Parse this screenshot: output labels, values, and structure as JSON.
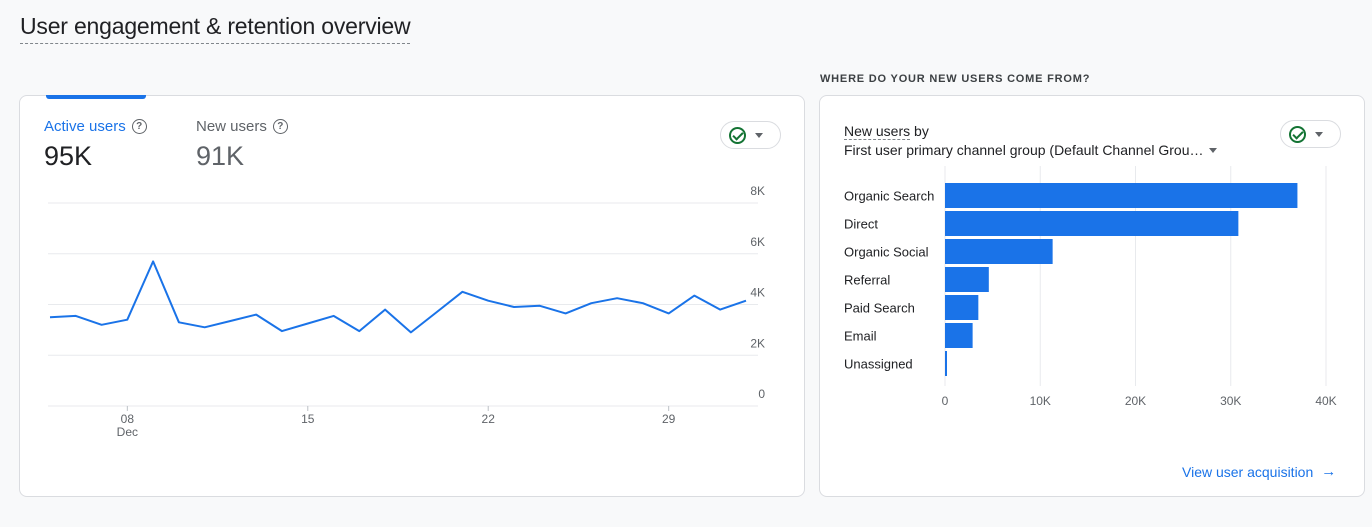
{
  "page": {
    "title": "User engagement & retention overview"
  },
  "left_card": {
    "metrics": [
      {
        "label": "Active users",
        "value": "95K",
        "help": "?"
      },
      {
        "label": "New users",
        "value": "91K",
        "help": "?"
      }
    ]
  },
  "right_section": {
    "heading": "WHERE DO YOUR NEW USERS COME FROM?",
    "metric_name": "New users",
    "by_word": " by",
    "dimension": "First user primary channel group (Default Channel Grou…",
    "link_label": "View user acquisition",
    "link_arrow": "→"
  },
  "colors": {
    "accent": "#1a73e8",
    "check": "#137333",
    "grid": "#e8eaed"
  },
  "icons": {
    "metric_help": "help-circle-icon",
    "status": "check-circle-icon",
    "dropdown": "caret-down-icon",
    "link": "arrow-right-icon"
  },
  "chart_data": [
    {
      "type": "line",
      "title": "",
      "series": [
        {
          "values": [
            3500,
            3550,
            3200,
            3400,
            5700,
            3300,
            3100,
            3350,
            3600,
            2950,
            3250,
            3550,
            2950,
            3800,
            2900,
            3700,
            4500,
            4150,
            3900,
            3950,
            3650,
            4050,
            4250,
            4050,
            3650,
            4350,
            3800,
            4150
          ]
        }
      ],
      "x_tick_labels": [
        {
          "index": 3,
          "label": "08",
          "sublabel": "Dec"
        },
        {
          "index": 10,
          "label": "15"
        },
        {
          "index": 17,
          "label": "22"
        },
        {
          "index": 24,
          "label": "29"
        }
      ],
      "y_tick_labels": [
        "0",
        "2K",
        "4K",
        "6K",
        "8K"
      ],
      "ylim": [
        0,
        8000
      ],
      "grid": true
    },
    {
      "type": "bar",
      "orientation": "horizontal",
      "categories": [
        "Organic Search",
        "Direct",
        "Organic Social",
        "Referral",
        "Paid Search",
        "Email",
        "Unassigned"
      ],
      "values": [
        37000,
        30800,
        11300,
        4600,
        3500,
        2900,
        150
      ],
      "x_tick_labels": [
        "0",
        "10K",
        "20K",
        "30K",
        "40K"
      ],
      "xlim": [
        0,
        40000
      ],
      "grid": true
    }
  ]
}
